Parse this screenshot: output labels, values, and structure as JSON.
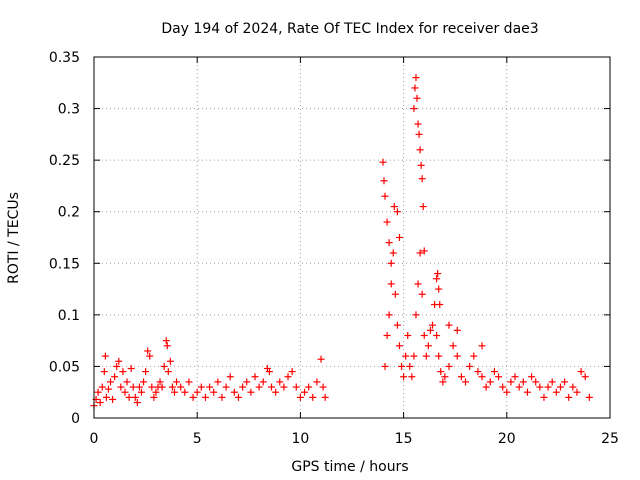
{
  "chart_data": {
    "type": "scatter",
    "title": "Day 194 of 2024, Rate Of TEC Index for receiver dae3",
    "xlabel": "GPS time / hours",
    "ylabel": "ROTI / TECUs",
    "xlim": [
      0,
      25
    ],
    "ylim": [
      0,
      0.35
    ],
    "xticks": [
      0,
      5,
      10,
      15,
      20,
      25
    ],
    "xtick_labels": [
      "0",
      "5",
      "10",
      "15",
      "20",
      "25"
    ],
    "yticks": [
      0,
      0.05,
      0.1,
      0.15,
      0.2,
      0.25,
      0.3,
      0.35
    ],
    "ytick_labels": [
      "0",
      "0.05",
      "0.1",
      "0.15",
      "0.2",
      "0.25",
      "0.3",
      "0.35"
    ],
    "grid": true,
    "marker": "+",
    "marker_color": "#ff0000",
    "series": [
      {
        "name": "ROTI",
        "points": [
          [
            0.0,
            0.012
          ],
          [
            0.1,
            0.018
          ],
          [
            0.2,
            0.025
          ],
          [
            0.3,
            0.015
          ],
          [
            0.4,
            0.03
          ],
          [
            0.5,
            0.045
          ],
          [
            0.55,
            0.06
          ],
          [
            0.6,
            0.02
          ],
          [
            0.7,
            0.028
          ],
          [
            0.8,
            0.035
          ],
          [
            0.9,
            0.018
          ],
          [
            1.0,
            0.04
          ],
          [
            1.1,
            0.05
          ],
          [
            1.2,
            0.055
          ],
          [
            1.3,
            0.03
          ],
          [
            1.4,
            0.045
          ],
          [
            1.5,
            0.025
          ],
          [
            1.6,
            0.035
          ],
          [
            1.7,
            0.02
          ],
          [
            1.8,
            0.048
          ],
          [
            1.9,
            0.03
          ],
          [
            2.0,
            0.02
          ],
          [
            2.1,
            0.015
          ],
          [
            2.2,
            0.03
          ],
          [
            2.3,
            0.025
          ],
          [
            2.4,
            0.035
          ],
          [
            2.5,
            0.045
          ],
          [
            2.6,
            0.065
          ],
          [
            2.7,
            0.06
          ],
          [
            2.8,
            0.03
          ],
          [
            2.9,
            0.02
          ],
          [
            3.0,
            0.025
          ],
          [
            3.1,
            0.03
          ],
          [
            3.2,
            0.035
          ],
          [
            3.3,
            0.03
          ],
          [
            3.4,
            0.05
          ],
          [
            3.5,
            0.075
          ],
          [
            3.55,
            0.07
          ],
          [
            3.6,
            0.045
          ],
          [
            3.7,
            0.055
          ],
          [
            3.8,
            0.03
          ],
          [
            3.9,
            0.025
          ],
          [
            4.0,
            0.035
          ],
          [
            4.2,
            0.03
          ],
          [
            4.4,
            0.025
          ],
          [
            4.6,
            0.035
          ],
          [
            4.8,
            0.02
          ],
          [
            5.0,
            0.025
          ],
          [
            5.2,
            0.03
          ],
          [
            5.4,
            0.02
          ],
          [
            5.6,
            0.03
          ],
          [
            5.8,
            0.025
          ],
          [
            6.0,
            0.035
          ],
          [
            6.2,
            0.02
          ],
          [
            6.4,
            0.03
          ],
          [
            6.6,
            0.04
          ],
          [
            6.8,
            0.025
          ],
          [
            7.0,
            0.02
          ],
          [
            7.2,
            0.03
          ],
          [
            7.4,
            0.035
          ],
          [
            7.6,
            0.025
          ],
          [
            7.8,
            0.04
          ],
          [
            8.0,
            0.03
          ],
          [
            8.2,
            0.035
          ],
          [
            8.4,
            0.048
          ],
          [
            8.5,
            0.045
          ],
          [
            8.6,
            0.03
          ],
          [
            8.8,
            0.025
          ],
          [
            9.0,
            0.035
          ],
          [
            9.2,
            0.03
          ],
          [
            9.4,
            0.04
          ],
          [
            9.6,
            0.045
          ],
          [
            9.8,
            0.03
          ],
          [
            10.0,
            0.02
          ],
          [
            10.2,
            0.025
          ],
          [
            10.4,
            0.03
          ],
          [
            10.6,
            0.02
          ],
          [
            10.8,
            0.035
          ],
          [
            11.0,
            0.057
          ],
          [
            11.1,
            0.03
          ],
          [
            11.2,
            0.02
          ],
          [
            14.1,
            0.05
          ],
          [
            14.2,
            0.08
          ],
          [
            14.3,
            0.1
          ],
          [
            14.4,
            0.13
          ],
          [
            14.5,
            0.16
          ],
          [
            14.6,
            0.12
          ],
          [
            14.7,
            0.09
          ],
          [
            14.8,
            0.07
          ],
          [
            14.9,
            0.05
          ],
          [
            15.0,
            0.04
          ],
          [
            15.1,
            0.06
          ],
          [
            15.2,
            0.08
          ],
          [
            15.3,
            0.05
          ],
          [
            15.4,
            0.04
          ],
          [
            15.5,
            0.06
          ],
          [
            15.6,
            0.1
          ],
          [
            15.7,
            0.13
          ],
          [
            15.8,
            0.16
          ],
          [
            15.9,
            0.12
          ],
          [
            16.0,
            0.08
          ],
          [
            16.1,
            0.06
          ],
          [
            16.2,
            0.07
          ],
          [
            16.3,
            0.085
          ],
          [
            16.4,
            0.09
          ],
          [
            16.5,
            0.11
          ],
          [
            16.6,
            0.08
          ],
          [
            16.7,
            0.06
          ],
          [
            16.8,
            0.045
          ],
          [
            16.9,
            0.035
          ],
          [
            17.0,
            0.04
          ],
          [
            17.2,
            0.05
          ],
          [
            17.4,
            0.07
          ],
          [
            17.6,
            0.06
          ],
          [
            17.8,
            0.04
          ],
          [
            18.0,
            0.035
          ],
          [
            18.2,
            0.05
          ],
          [
            18.4,
            0.06
          ],
          [
            18.6,
            0.045
          ],
          [
            18.8,
            0.04
          ],
          [
            19.0,
            0.03
          ],
          [
            19.2,
            0.035
          ],
          [
            19.4,
            0.045
          ],
          [
            19.6,
            0.04
          ],
          [
            19.8,
            0.03
          ],
          [
            20.0,
            0.025
          ],
          [
            20.2,
            0.035
          ],
          [
            20.4,
            0.04
          ],
          [
            20.6,
            0.03
          ],
          [
            20.8,
            0.035
          ],
          [
            21.0,
            0.025
          ],
          [
            21.2,
            0.04
          ],
          [
            21.4,
            0.035
          ],
          [
            21.6,
            0.03
          ],
          [
            21.8,
            0.02
          ],
          [
            22.0,
            0.03
          ],
          [
            22.2,
            0.035
          ],
          [
            22.4,
            0.025
          ],
          [
            22.6,
            0.03
          ],
          [
            22.8,
            0.035
          ],
          [
            23.0,
            0.02
          ],
          [
            23.2,
            0.03
          ],
          [
            23.4,
            0.025
          ],
          [
            23.6,
            0.045
          ],
          [
            23.8,
            0.04
          ],
          [
            24.0,
            0.02
          ],
          [
            14.0,
            0.248
          ],
          [
            14.05,
            0.23
          ],
          [
            14.1,
            0.215
          ],
          [
            14.2,
            0.19
          ],
          [
            14.3,
            0.17
          ],
          [
            14.4,
            0.15
          ],
          [
            14.55,
            0.205
          ],
          [
            14.7,
            0.2
          ],
          [
            14.8,
            0.175
          ],
          [
            15.5,
            0.3
          ],
          [
            15.55,
            0.32
          ],
          [
            15.6,
            0.33
          ],
          [
            15.65,
            0.31
          ],
          [
            15.7,
            0.285
          ],
          [
            15.75,
            0.275
          ],
          [
            15.8,
            0.26
          ],
          [
            15.85,
            0.245
          ],
          [
            15.9,
            0.232
          ],
          [
            15.95,
            0.205
          ],
          [
            16.0,
            0.162
          ],
          [
            16.6,
            0.135
          ],
          [
            16.65,
            0.14
          ],
          [
            16.7,
            0.125
          ],
          [
            16.75,
            0.11
          ],
          [
            17.2,
            0.09
          ],
          [
            17.6,
            0.085
          ],
          [
            18.8,
            0.07
          ]
        ]
      }
    ]
  }
}
